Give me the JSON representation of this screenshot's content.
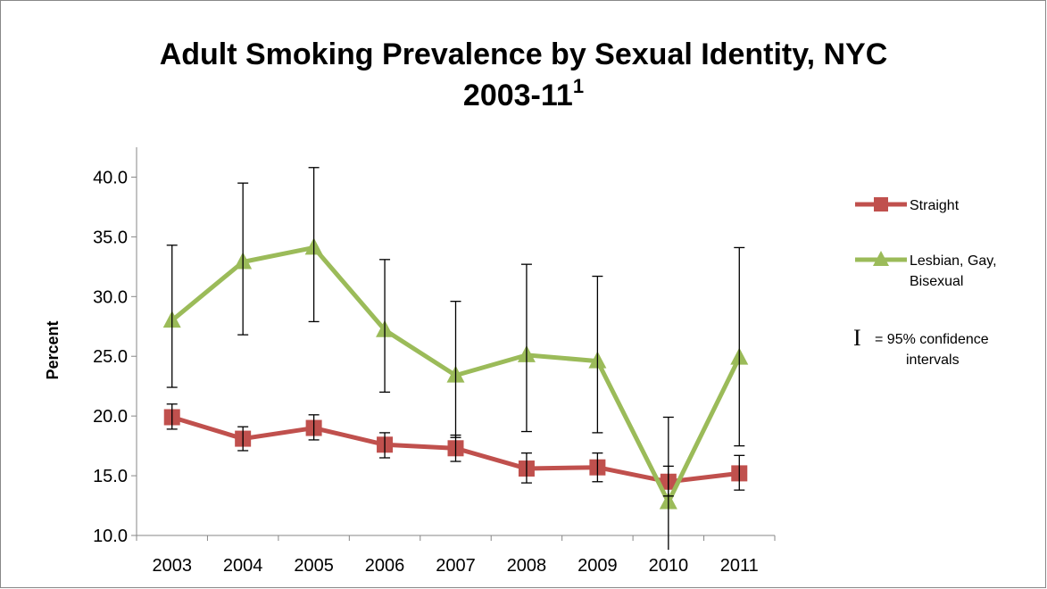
{
  "chart_data": {
    "type": "line",
    "title_line1": "Adult Smoking Prevalence by Sexual Identity, NYC",
    "title_line2": "2003-11",
    "title_superscript": "1",
    "ylabel": "Percent",
    "xlabel": "",
    "ylim": [
      10.0,
      42.5
    ],
    "yticks": [
      "10.0",
      "15.0",
      "20.0",
      "25.0",
      "30.0",
      "35.0",
      "40.0"
    ],
    "ytick_values": [
      10,
      15,
      20,
      25,
      30,
      35,
      40
    ],
    "categories": [
      "2003",
      "2004",
      "2005",
      "2006",
      "2007",
      "2008",
      "2009",
      "2010",
      "2011"
    ],
    "grid": false,
    "legend_position": "right",
    "series": [
      {
        "name": "Straight",
        "color": "#c0504d",
        "marker": "square",
        "values": [
          19.9,
          18.1,
          19.0,
          17.6,
          17.3,
          15.6,
          15.7,
          14.5,
          15.2
        ],
        "ci_low": [
          18.9,
          17.1,
          18.0,
          16.5,
          16.2,
          14.4,
          14.5,
          13.3,
          13.8
        ],
        "ci_high": [
          21.0,
          19.1,
          20.1,
          18.6,
          18.4,
          16.9,
          16.9,
          15.8,
          16.7
        ]
      },
      {
        "name_lines": [
          "Lesbian, Gay,",
          "Bisexual"
        ],
        "color": "#9bbb59",
        "marker": "triangle",
        "values": [
          28.0,
          32.9,
          34.1,
          27.2,
          23.4,
          25.1,
          24.6,
          12.8,
          24.9
        ],
        "ci_low": [
          22.4,
          26.8,
          27.9,
          22.0,
          18.2,
          18.7,
          18.6,
          8.8,
          17.5
        ],
        "ci_high": [
          34.3,
          39.5,
          40.8,
          33.1,
          29.6,
          32.7,
          31.7,
          19.9,
          34.1
        ]
      }
    ],
    "ci_note": {
      "symbol": "I",
      "text_line1": "= 95% confidence",
      "text_line2": "intervals"
    }
  }
}
